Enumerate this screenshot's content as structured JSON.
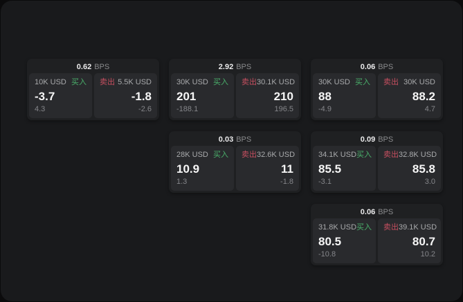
{
  "labels": {
    "bps_unit": "BPS",
    "buy": "买入",
    "sell": "卖出"
  },
  "colors": {
    "buy_green": "#4ab06b",
    "sell_red": "#c74f60",
    "page_bg": "#191a1c",
    "card_bg": "#1f2022",
    "subcard_bg": "#292a2d"
  },
  "cards": [
    {
      "bps": "0.62",
      "buy": {
        "amount": "10K USD",
        "value": "-3.7",
        "delta": "4.3"
      },
      "sell": {
        "amount": "5.5K USD",
        "value": "-1.8",
        "delta": "-2.6"
      }
    },
    {
      "bps": "2.92",
      "buy": {
        "amount": "30K USD",
        "value": "201",
        "delta": "-188.1"
      },
      "sell": {
        "amount": "30.1K USD",
        "value": "210",
        "delta": "196.5"
      }
    },
    {
      "bps": "0.06",
      "buy": {
        "amount": "30K USD",
        "value": "88",
        "delta": "-4.9"
      },
      "sell": {
        "amount": "30K USD",
        "value": "88.2",
        "delta": "4.7"
      }
    },
    {
      "bps": "0.03",
      "buy": {
        "amount": "28K USD",
        "value": "10.9",
        "delta": "1.3"
      },
      "sell": {
        "amount": "32.6K USD",
        "value": "11",
        "delta": "-1.8"
      }
    },
    {
      "bps": "0.09",
      "buy": {
        "amount": "34.1K USD",
        "value": "85.5",
        "delta": "-3.1"
      },
      "sell": {
        "amount": "32.8K USD",
        "value": "85.8",
        "delta": "3.0"
      }
    },
    {
      "bps": "0.06",
      "buy": {
        "amount": "31.8K USD",
        "value": "80.5",
        "delta": "-10.8"
      },
      "sell": {
        "amount": "39.1K USD",
        "value": "80.7",
        "delta": "10.2"
      }
    }
  ]
}
